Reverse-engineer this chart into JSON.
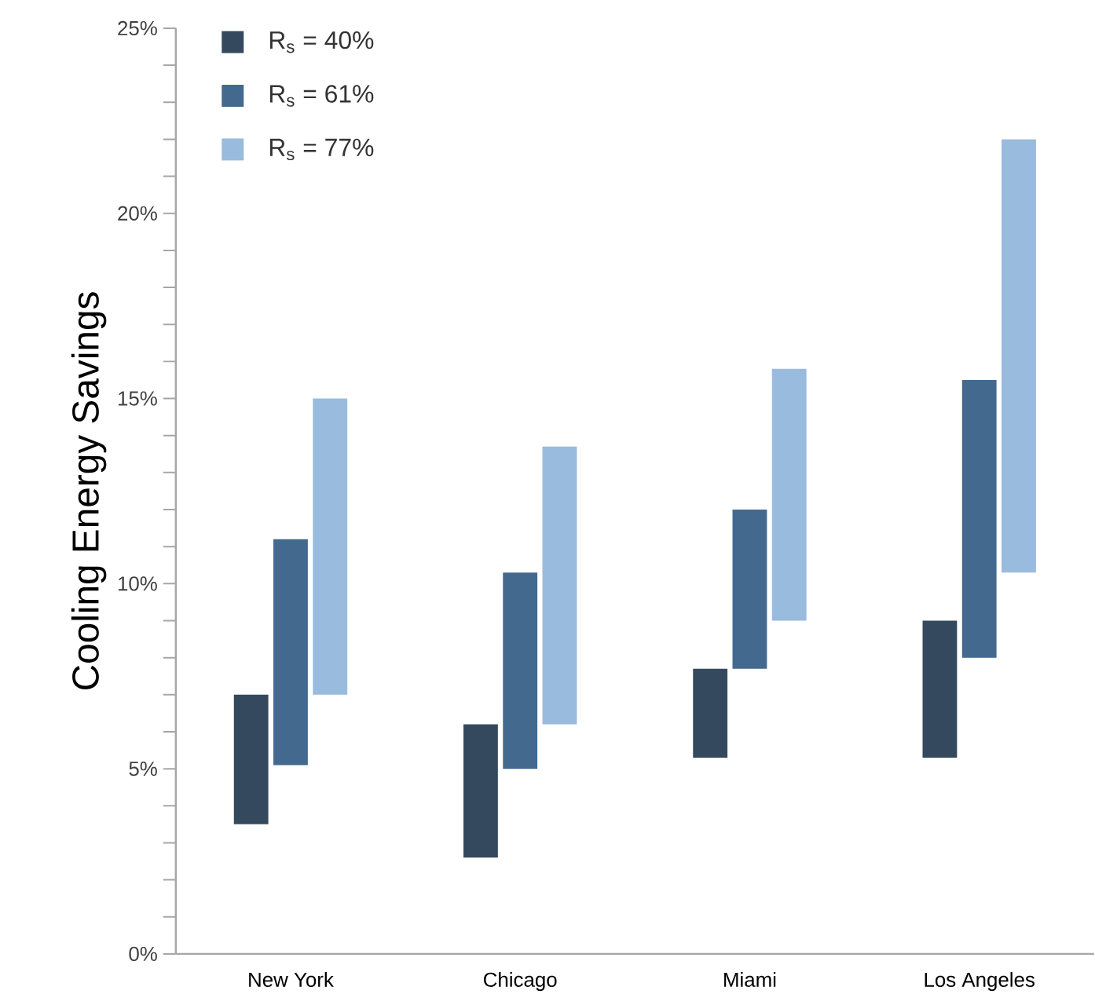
{
  "chart_data": {
    "type": "bar",
    "ylabel": "Cooling Energy Savings",
    "categories": [
      "New York",
      "Chicago",
      "Miami",
      "Los Angeles"
    ],
    "series": [
      {
        "name": "R$_{s}$ = 40%",
        "color": "#34495e",
        "base": [
          3.5,
          2.6,
          5.3,
          5.3
        ],
        "values": [
          3.5,
          3.6,
          2.4,
          3.7
        ]
      },
      {
        "name": "R$_{s}$ = 61%",
        "color": "#43698f",
        "base": [
          5.1,
          5.0,
          7.7,
          8.0
        ],
        "values": [
          6.1,
          5.3,
          4.3,
          7.5
        ]
      },
      {
        "name": "R$_{s}$ = 77%",
        "color": "#99bbdd",
        "base": [
          7.0,
          6.2,
          9.0,
          10.3
        ],
        "values": [
          8.0,
          7.5,
          6.8,
          11.7
        ]
      }
    ],
    "ylim": [
      0,
      25
    ],
    "yticks": [
      {
        "value": 0,
        "label": "0%"
      },
      {
        "value": 1,
        "label": null
      },
      {
        "value": 2,
        "label": null
      },
      {
        "value": 3,
        "label": null
      },
      {
        "value": 4,
        "label": null
      },
      {
        "value": 5,
        "label": "5%"
      },
      {
        "value": 6,
        "label": null
      },
      {
        "value": 7,
        "label": null
      },
      {
        "value": 8,
        "label": null
      },
      {
        "value": 9,
        "label": null
      },
      {
        "value": 10,
        "label": "10%"
      },
      {
        "value": 11,
        "label": null
      },
      {
        "value": 12,
        "label": null
      },
      {
        "value": 13,
        "label": null
      },
      {
        "value": 14,
        "label": null
      },
      {
        "value": 15,
        "label": "15%"
      },
      {
        "value": 16,
        "label": null
      },
      {
        "value": 17,
        "label": null
      },
      {
        "value": 18,
        "label": null
      },
      {
        "value": 19,
        "label": null
      },
      {
        "value": 20,
        "label": "20%"
      },
      {
        "value": 21,
        "label": null
      },
      {
        "value": 22,
        "label": null
      },
      {
        "value": 23,
        "label": null
      },
      {
        "value": 24,
        "label": null
      },
      {
        "value": 25,
        "label": "25%"
      }
    ],
    "legend": "top left",
    "grid": false
  }
}
